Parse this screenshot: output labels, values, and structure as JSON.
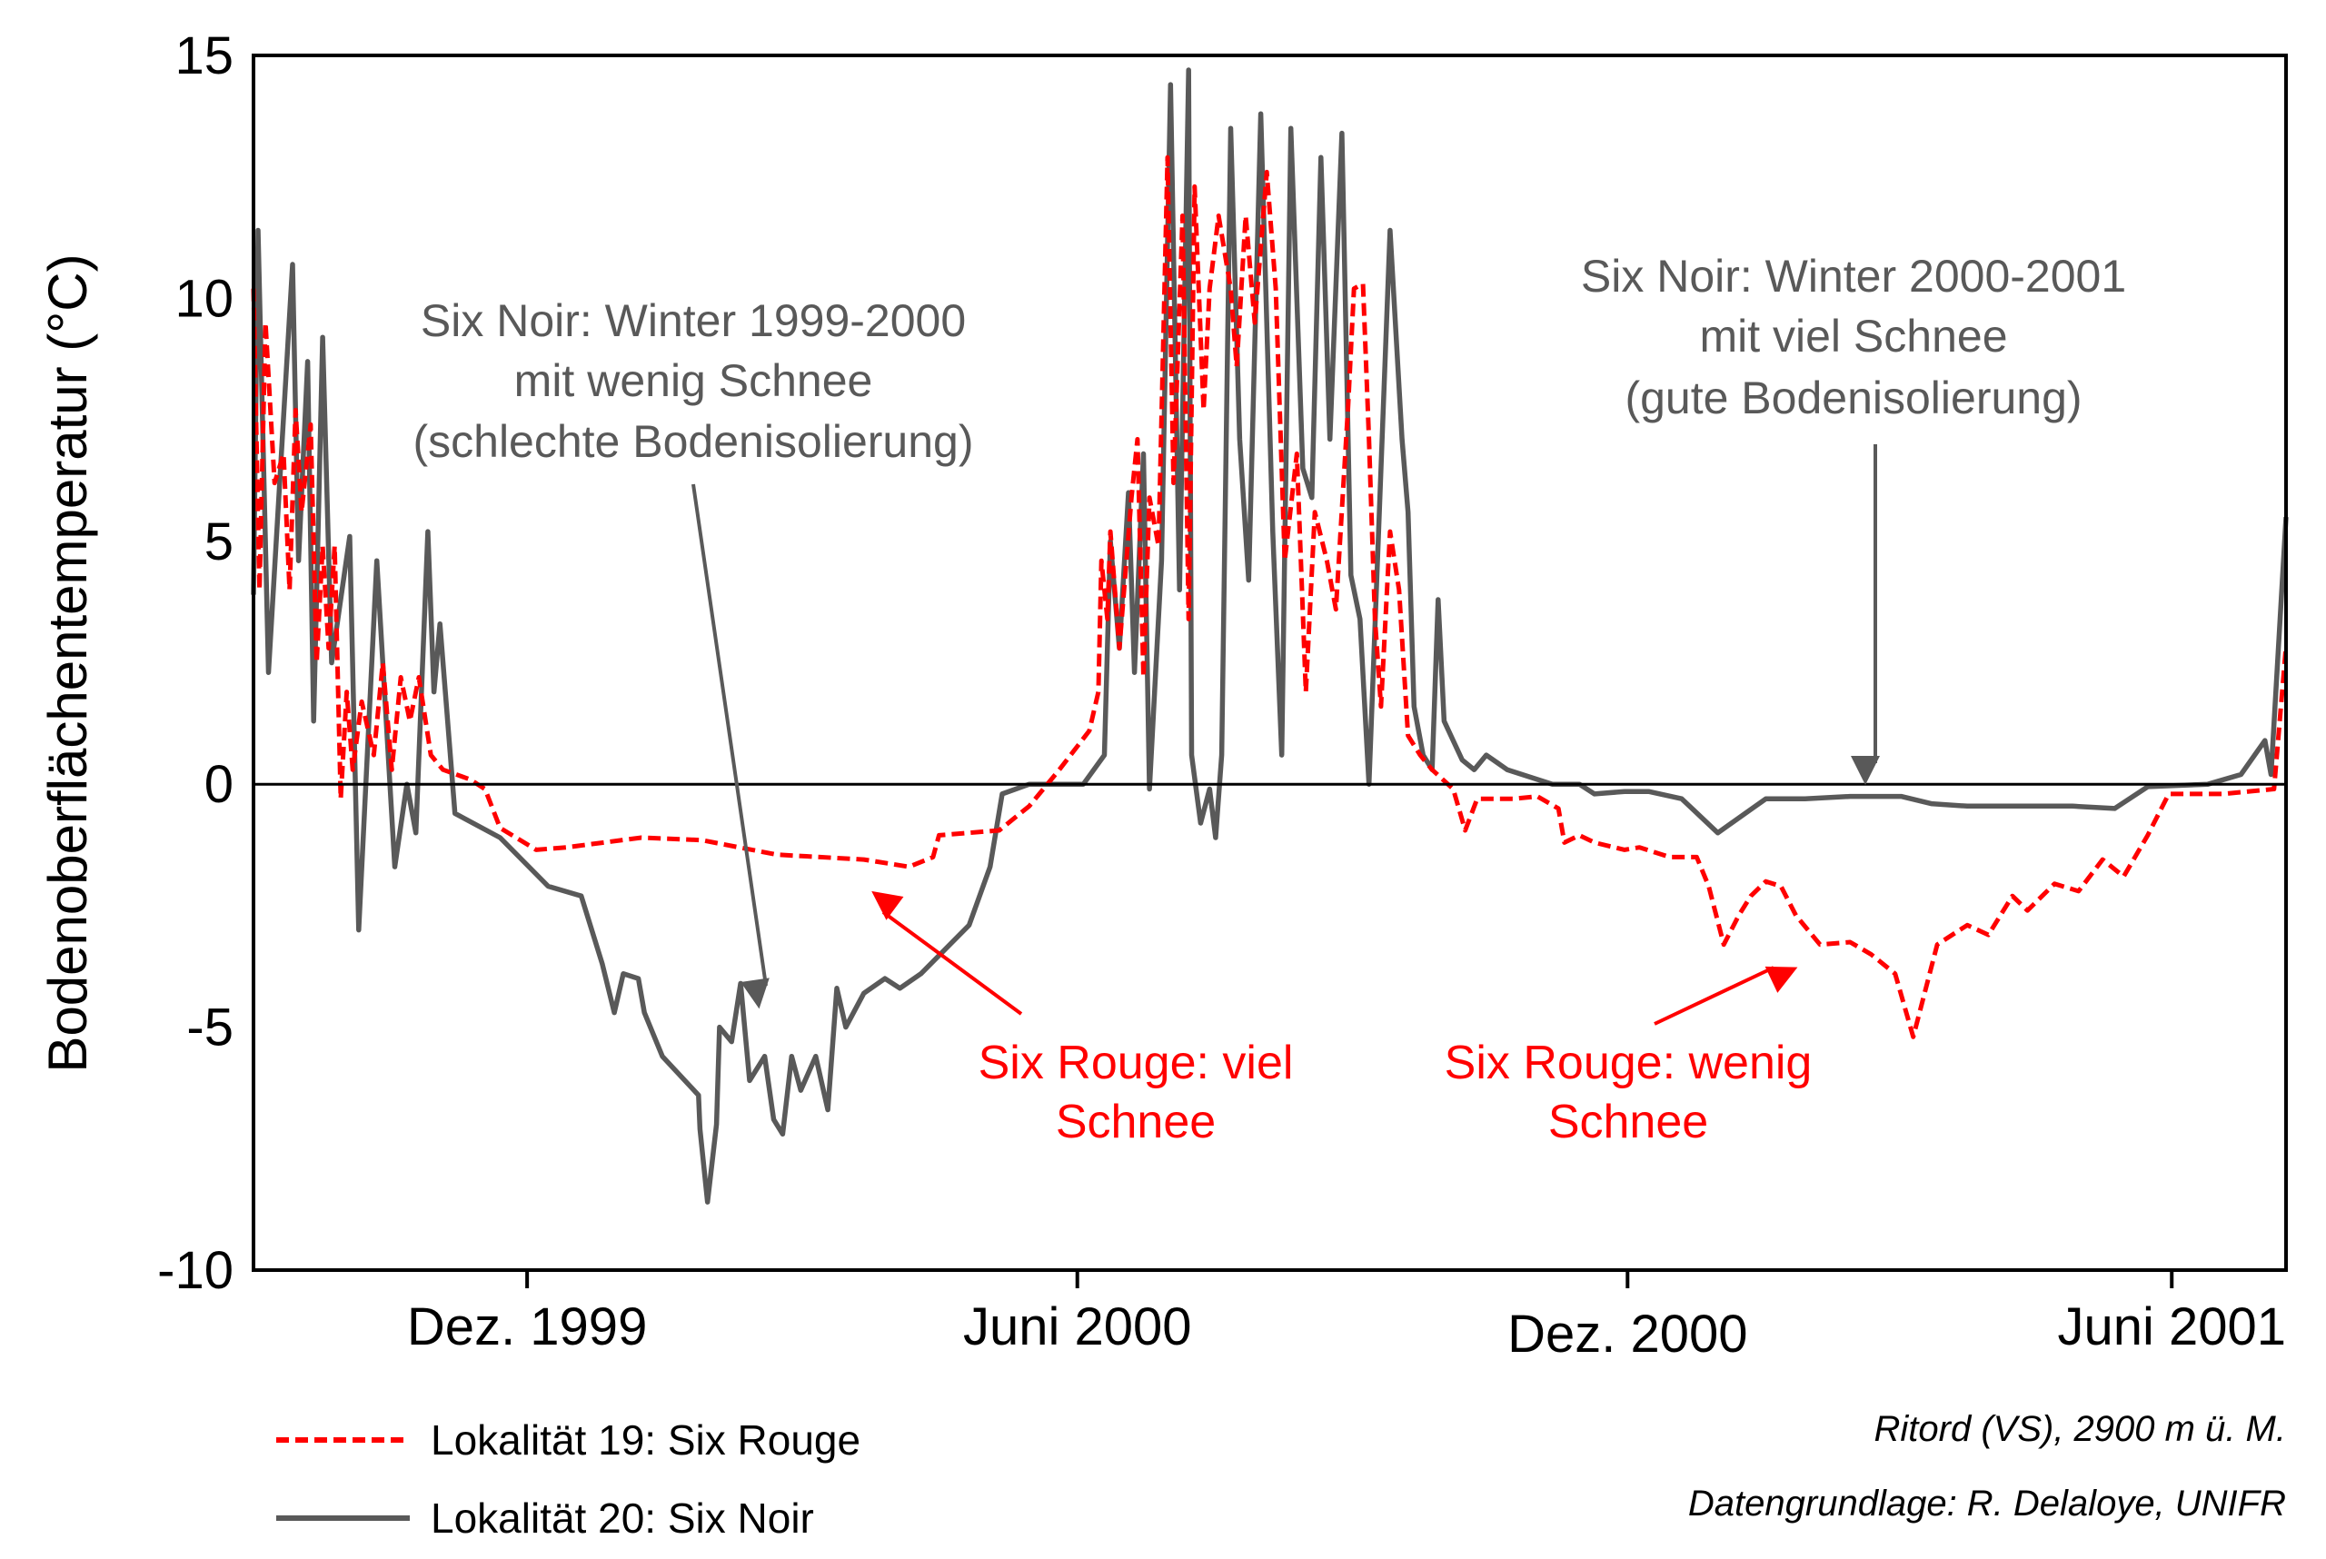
{
  "chart_data": {
    "type": "line",
    "title": "",
    "xlabel": "",
    "ylabel": "Bodenoberflächentemperatur (°C)",
    "x_unit": "days since 1 Sep 1999 (approx.)",
    "xlim": [
      0,
      676
    ],
    "ylim": [
      -10,
      15
    ],
    "yticks": [
      15,
      10,
      5,
      0,
      -5,
      -10
    ],
    "ytick_labels": [
      "15",
      "10",
      "5",
      "0",
      "-5",
      "-10"
    ],
    "xticks": [
      91,
      274,
      457,
      638
    ],
    "xtick_labels": [
      "Dez. 1999",
      "Juni 2000",
      "Dez. 2000",
      "Juni 2001"
    ],
    "grid": false,
    "zero_line": true,
    "legend_position": "bottom-left",
    "series": [
      {
        "name": "Lokalität 19: Six Rouge",
        "color": "#ff0000",
        "style": "dashed",
        "x": [
          0,
          2,
          4,
          7,
          10,
          12,
          14,
          16,
          19,
          21,
          23,
          25,
          27,
          29,
          31,
          33,
          36,
          40,
          43,
          46,
          49,
          52,
          55,
          59,
          63,
          72,
          77,
          82,
          94,
          104,
          129,
          149,
          174,
          203,
          218,
          226,
          228,
          248,
          258,
          268,
          278,
          281,
          282,
          284,
          285,
          288,
          292,
          294,
          296,
          298,
          301,
          304,
          306,
          309,
          311,
          313,
          316,
          318,
          321,
          325,
          327,
          330,
          333,
          337,
          340,
          343,
          347,
          350,
          353,
          357,
          360,
          364,
          366,
          369,
          371,
          373,
          375,
          378,
          381,
          384,
          388,
          392,
          399,
          403,
          407,
          412,
          419,
          427,
          434,
          436,
          441,
          446,
          456,
          461,
          471,
          480,
          484,
          489,
          494,
          498,
          503,
          508,
          513,
          521,
          531,
          538,
          546,
          552,
          560,
          570,
          577,
          585,
          590,
          599,
          607,
          615,
          622,
          630,
          637,
          655,
          672,
          676
        ],
        "y": [
          10.2,
          4.0,
          9.5,
          6.2,
          6.8,
          4.0,
          7.7,
          5.6,
          7.4,
          2.5,
          4.9,
          2.8,
          4.9,
          -0.3,
          1.9,
          0.3,
          1.7,
          0.6,
          2.5,
          0.3,
          2.2,
          1.3,
          2.2,
          0.6,
          0.3,
          0.1,
          -0.1,
          -0.9,
          -1.35,
          -1.3,
          -1.1,
          -1.15,
          -1.45,
          -1.55,
          -1.7,
          -1.5,
          -1.05,
          -0.95,
          -0.45,
          0.3,
          1.1,
          1.9,
          4.6,
          3.4,
          5.2,
          2.8,
          5.9,
          7.1,
          2.2,
          5.9,
          4.9,
          12.9,
          6.2,
          11.7,
          3.4,
          12.3,
          7.7,
          10.2,
          11.7,
          10.2,
          8.6,
          11.7,
          9.5,
          12.6,
          10.2,
          4.6,
          6.8,
          1.9,
          5.6,
          4.6,
          3.6,
          7.7,
          10.2,
          10.3,
          7.1,
          3.4,
          1.6,
          5.2,
          4.0,
          1.0,
          0.6,
          0.3,
          -0.1,
          -0.95,
          -0.3,
          -0.3,
          -0.3,
          -0.25,
          -0.5,
          -1.2,
          -1.05,
          -1.2,
          -1.35,
          -1.3,
          -1.5,
          -1.5,
          -2.1,
          -3.3,
          -2.7,
          -2.3,
          -2.0,
          -2.1,
          -2.7,
          -3.3,
          -3.25,
          -3.5,
          -3.9,
          -5.2,
          -3.3,
          -2.9,
          -3.1,
          -2.3,
          -2.6,
          -2.05,
          -2.2,
          -1.55,
          -1.9,
          -1.05,
          -0.2,
          -0.2,
          -0.1,
          2.85
        ]
      },
      {
        "name": "Lokalität 20: Six Noir",
        "color": "#595959",
        "style": "solid",
        "x": [
          0,
          1.5,
          5,
          13,
          15,
          18,
          20,
          23,
          26,
          32,
          35,
          41,
          47,
          51,
          54,
          58,
          60,
          62,
          67,
          82,
          98,
          109,
          116,
          120,
          123,
          128,
          130,
          136,
          148,
          148.5,
          151,
          154,
          155,
          159,
          162,
          165,
          170,
          173,
          176,
          179,
          182,
          187,
          191,
          194,
          197,
          203,
          210,
          215,
          222,
          238,
          245,
          249,
          258,
          276,
          283,
          285,
          288,
          291,
          293,
          296,
          298,
          302,
          305,
          308,
          311,
          312,
          315,
          318,
          320,
          322,
          325,
          328,
          331,
          335,
          339,
          342,
          345,
          349,
          352,
          355,
          358,
          362,
          365,
          368,
          371,
          378,
          382,
          384,
          386,
          389,
          392,
          394,
          396,
          402,
          406,
          410,
          417,
          432,
          441,
          446,
          456,
          464,
          475,
          487,
          503,
          516,
          531,
          548,
          558,
          570,
          605,
          619,
          630,
          650,
          661,
          669,
          671,
          676
        ],
        "y": [
          3.9,
          11.4,
          2.3,
          10.7,
          4.6,
          8.7,
          1.3,
          9.2,
          2.5,
          5.1,
          -3.0,
          4.6,
          -1.7,
          0,
          -1.0,
          5.2,
          1.9,
          3.3,
          -0.6,
          -1.1,
          -2.1,
          -2.3,
          -3.7,
          -4.7,
          -3.9,
          -4.0,
          -4.7,
          -5.6,
          -6.4,
          -7.1,
          -8.6,
          -7.0,
          -5.0,
          -5.3,
          -4.1,
          -6.1,
          -5.6,
          -6.9,
          -7.2,
          -5.6,
          -6.3,
          -5.6,
          -6.7,
          -4.2,
          -5.0,
          -4.3,
          -4.0,
          -4.2,
          -3.9,
          -2.9,
          -1.7,
          -0.2,
          0,
          0,
          0.6,
          5.0,
          2.8,
          6.0,
          2.3,
          6.8,
          -0.1,
          4.6,
          14.4,
          4.0,
          14.7,
          0.6,
          -0.8,
          -0.1,
          -1.1,
          0.6,
          13.5,
          7.1,
          4.2,
          13.8,
          5.2,
          0.6,
          13.5,
          6.5,
          5.9,
          12.9,
          7.1,
          13.4,
          4.3,
          3.4,
          0,
          11.4,
          7.1,
          5.6,
          1.6,
          0.6,
          0.3,
          3.8,
          1.3,
          0.5,
          0.3,
          0.6,
          0.3,
          0,
          0,
          -0.2,
          -0.15,
          -0.15,
          -0.3,
          -1.0,
          -0.3,
          -0.3,
          -0.25,
          -0.25,
          -0.4,
          -0.45,
          -0.45,
          -0.5,
          -0.05,
          0,
          0.2,
          0.9,
          0.2,
          5.5
        ]
      }
    ],
    "annotations": [
      {
        "lines": [
          "Six Noir: Winter 1999-2000",
          "mit wenig Schnee",
          "(schlechte Bodenisolierung)"
        ],
        "color": "#595959"
      },
      {
        "lines": [
          "Six Noir: Winter 2000-2001",
          "mit viel Schnee",
          "(gute Bodenisolierung)"
        ],
        "color": "#595959"
      },
      {
        "lines": [
          "Six Rouge: viel",
          "Schnee"
        ],
        "color": "#ff0000"
      },
      {
        "lines": [
          "Six Rouge: wenig",
          "Schnee"
        ],
        "color": "#ff0000"
      }
    ],
    "notes": [
      "Ritord (VS), 2900 m ü. M.",
      "Datengrundlage: R. Delaloye, UNIFR"
    ]
  }
}
